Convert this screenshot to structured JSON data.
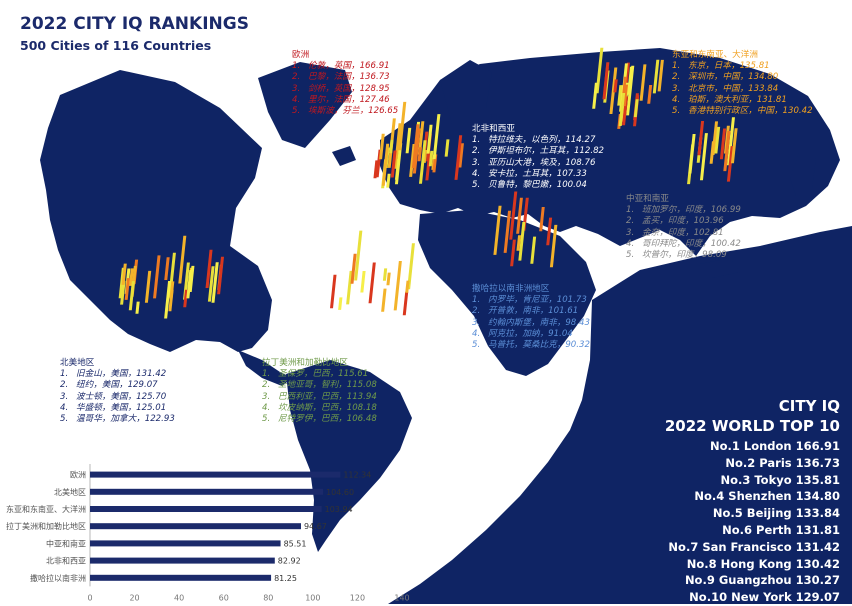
{
  "header": {
    "title": "2022 CITY IQ RANKINGS",
    "subtitle": "500 Cities of 116 Countries"
  },
  "regions": [
    {
      "name": "欧洲",
      "color": "#c0181f",
      "items": [
        {
          "rank": "1.",
          "text": "伦敦，英国，166.91"
        },
        {
          "rank": "2.",
          "text": "巴黎，法国，136.73"
        },
        {
          "rank": "3.",
          "text": "剑桥，英国，128.95"
        },
        {
          "rank": "4.",
          "text": "里尔，法国，127.46"
        },
        {
          "rank": "5.",
          "text": "埃斯波，芬兰，126.65"
        }
      ]
    },
    {
      "name": "东亚和东南亚、大洋洲",
      "color": "#f0a020",
      "items": [
        {
          "rank": "1.",
          "text": "东京，日本，135.81"
        },
        {
          "rank": "2.",
          "text": "深圳市，中国，134.80"
        },
        {
          "rank": "3.",
          "text": "北京市，中国，133.84"
        },
        {
          "rank": "4.",
          "text": "珀斯，澳大利亚，131.81"
        },
        {
          "rank": "5.",
          "text": "香港特别行政区，中国，130.42"
        }
      ]
    },
    {
      "name": "北非和西亚",
      "color": "#ffffff",
      "items": [
        {
          "rank": "1.",
          "text": "特拉维夫，以色列，114.27"
        },
        {
          "rank": "2.",
          "text": "伊斯坦布尔，土耳其，112.82"
        },
        {
          "rank": "3.",
          "text": "亚历山大港，埃及，108.76"
        },
        {
          "rank": "4.",
          "text": "安卡拉，土耳其，107.33"
        },
        {
          "rank": "5.",
          "text": "贝鲁特，黎巴嫩，100.04"
        }
      ]
    },
    {
      "name": "中亚和南亚",
      "color": "#8a8a8a",
      "items": [
        {
          "rank": "1.",
          "text": "班加罗尔，印度，106.99"
        },
        {
          "rank": "2.",
          "text": "孟买，印度，103.96"
        },
        {
          "rank": "3.",
          "text": "金奈，印度，102.81"
        },
        {
          "rank": "4.",
          "text": "哥印拜陀，印度，100.42"
        },
        {
          "rank": "5.",
          "text": "坎普尔，印度，98.09"
        }
      ]
    },
    {
      "name": "撒哈拉以南非洲地区",
      "color": "#5b8ed6",
      "items": [
        {
          "rank": "1.",
          "text": "内罗毕，肯尼亚，101.73"
        },
        {
          "rank": "2.",
          "text": "开普敦，南非，101.61"
        },
        {
          "rank": "3.",
          "text": "约翰内斯堡，南非，98.43"
        },
        {
          "rank": "4.",
          "text": "阿克拉，加纳，91.04"
        },
        {
          "rank": "5.",
          "text": "马普托，莫桑比克，90.32"
        }
      ]
    },
    {
      "name": "北美地区",
      "color": "#1b2a6b",
      "items": [
        {
          "rank": "1.",
          "text": "旧金山，美国，131.42"
        },
        {
          "rank": "2.",
          "text": "纽约，美国，129.07"
        },
        {
          "rank": "3.",
          "text": "波士顿，美国，125.70"
        },
        {
          "rank": "4.",
          "text": "华盛顿，美国，125.01"
        },
        {
          "rank": "5.",
          "text": "温哥华，加拿大，122.93"
        }
      ]
    },
    {
      "name": "拉丁美洲和加勒比地区",
      "color": "#6f9a4a",
      "items": [
        {
          "rank": "1.",
          "text": "圣保罗，巴西，115.61"
        },
        {
          "rank": "2.",
          "text": "圣地亚哥，智利，115.08"
        },
        {
          "rank": "3.",
          "text": "巴西利亚，巴西，113.94"
        },
        {
          "rank": "4.",
          "text": "坎皮纳斯，巴西，108.18"
        },
        {
          "rank": "5.",
          "text": "尼特罗伊，巴西，106.48"
        }
      ]
    }
  ],
  "top10": {
    "title_line1": "CITY IQ",
    "title_line2": "2022 WORLD TOP 10",
    "rows": [
      "No.1 London 166.91",
      "No.2 Paris 136.73",
      "No.3 Tokyo 135.81",
      "No.4 Shenzhen 134.80",
      "No.5 Beijing 133.84",
      "No.6 Perth 131.81",
      "No.7 San Francisco 131.42",
      "No.8 Hong Kong 130.42",
      "No.9 Guangzhou 130.27",
      "No.10 New York 129.07"
    ]
  },
  "colors": {
    "land": "#0f2464",
    "bar": "#1b2a6b",
    "axis_text": "#555555"
  },
  "chart_data": {
    "type": "bar",
    "orientation": "horizontal",
    "categories": [
      "欧洲",
      "北美地区",
      "东亚和东南亚、大洋洲",
      "拉丁美洲和加勒比地区",
      "中亚和南亚",
      "北非和西亚",
      "撒哈拉以南非洲"
    ],
    "values": [
      112.34,
      104.6,
      103.94,
      94.67,
      85.51,
      82.92,
      81.25
    ],
    "value_labels": [
      "112.34",
      "104.60",
      "103.94",
      "94.67",
      "85.51",
      "82.92",
      "81.25"
    ],
    "xlim": [
      0,
      140
    ],
    "xticks": [
      "0",
      "20",
      "40",
      "60",
      "80",
      "100",
      "120",
      "140"
    ],
    "title": "",
    "xlabel": "",
    "ylabel": "",
    "grid": false
  }
}
